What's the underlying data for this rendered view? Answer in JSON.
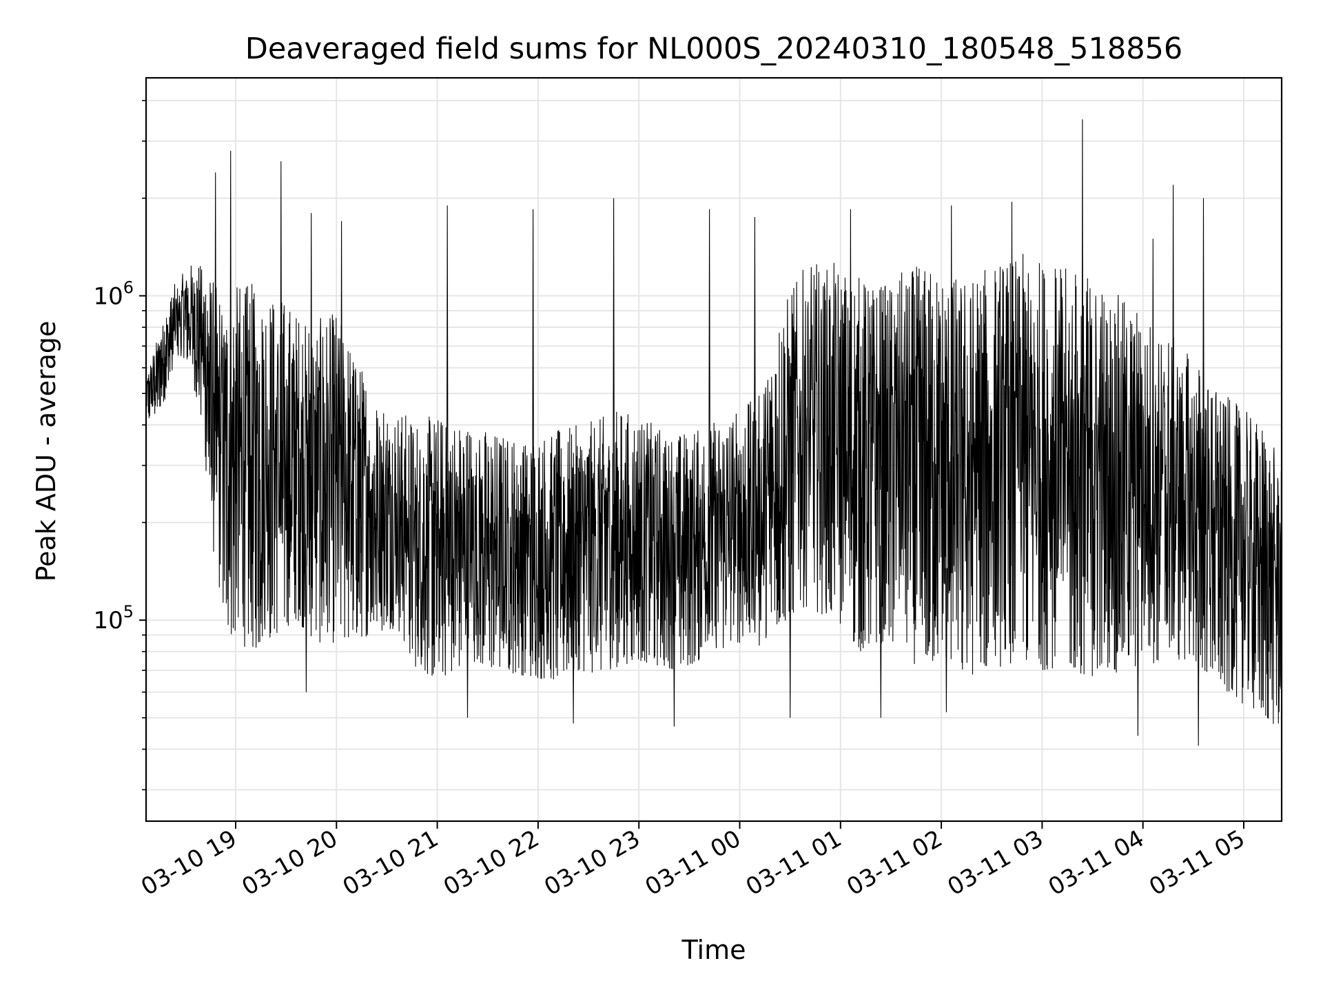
{
  "chart_data": {
    "type": "line",
    "title": "Deaveraged field sums for NL000S_20240310_180548_518856",
    "xlabel": "Time",
    "ylabel": "Peak ADU - average",
    "y_scale": "log",
    "ylim": [
      24000,
      4700000
    ],
    "xlim": [
      "03-10 18:06",
      "03-11 05:25"
    ],
    "grid": true,
    "line_color": "#000000",
    "grid_color": "#e6e6e6",
    "x_tick_labels": [
      "03-10 19",
      "03-10 20",
      "03-10 21",
      "03-10 22",
      "03-10 23",
      "03-11 00",
      "03-11 01",
      "03-11 02",
      "03-11 03",
      "03-11 04",
      "03-11 05"
    ],
    "y_tick_labels": [
      {
        "base": "10",
        "exp": "5",
        "value": 100000
      },
      {
        "base": "10",
        "exp": "6",
        "value": 1000000
      }
    ],
    "series": [
      {
        "x_hours_since_1800": [
          0.1,
          0.2,
          0.3,
          0.4,
          0.5,
          0.6,
          0.7,
          0.8,
          0.9,
          1.0,
          1.2,
          1.4,
          1.6,
          1.8,
          2.0,
          2.2,
          2.4,
          2.6,
          2.8,
          3.0,
          3.2,
          3.4,
          3.6,
          3.8,
          4.0,
          4.2,
          4.4,
          4.6,
          4.8,
          5.0,
          5.2,
          5.4,
          5.6,
          5.8,
          6.0,
          6.2,
          6.4,
          6.6,
          6.8,
          7.0,
          7.2,
          7.4,
          7.6,
          7.8,
          8.0,
          8.2,
          8.4,
          8.6,
          8.8,
          9.0,
          9.2,
          9.4,
          9.6,
          9.8,
          10.0,
          10.2,
          10.4,
          10.6,
          10.8,
          11.0,
          11.2,
          11.4
        ],
        "lower": [
          400000,
          420000,
          480000,
          600000,
          650000,
          500000,
          300000,
          140000,
          95000,
          85000,
          80000,
          90000,
          100000,
          85000,
          85000,
          88000,
          90000,
          95000,
          70000,
          65000,
          70000,
          72000,
          70000,
          68000,
          66000,
          65000,
          70000,
          68000,
          72000,
          75000,
          72000,
          70000,
          75000,
          80000,
          85000,
          80000,
          95000,
          110000,
          105000,
          95000,
          80000,
          85000,
          80000,
          70000,
          75000,
          65000,
          70000,
          72000,
          75000,
          70000,
          72000,
          68000,
          66000,
          70000,
          72000,
          75000,
          75000,
          70000,
          60000,
          55000,
          50000,
          45000
        ],
        "upper": [
          550000,
          700000,
          900000,
          1100000,
          1200000,
          1300000,
          1250000,
          1100000,
          1000000,
          1100000,
          1100000,
          1050000,
          900000,
          850000,
          900000,
          650000,
          500000,
          450000,
          420000,
          430000,
          420000,
          400000,
          380000,
          370000,
          380000,
          390000,
          400000,
          420000,
          450000,
          430000,
          400000,
          380000,
          400000,
          420000,
          450000,
          500000,
          900000,
          1200000,
          1300000,
          1250000,
          1150000,
          1100000,
          1200000,
          1250000,
          1200000,
          1150000,
          1200000,
          1300000,
          1350000,
          1300000,
          1250000,
          1200000,
          1100000,
          1000000,
          900000,
          800000,
          700000,
          600000,
          500000,
          450000,
          400000,
          300000
        ],
        "spikes": [
          {
            "x": 0.8,
            "y": 2400000
          },
          {
            "x": 0.95,
            "y": 2800000
          },
          {
            "x": 1.45,
            "y": 2600000
          },
          {
            "x": 1.75,
            "y": 1800000
          },
          {
            "x": 2.05,
            "y": 1700000
          },
          {
            "x": 3.1,
            "y": 1900000
          },
          {
            "x": 3.95,
            "y": 1850000
          },
          {
            "x": 4.75,
            "y": 2000000
          },
          {
            "x": 5.7,
            "y": 1850000
          },
          {
            "x": 6.15,
            "y": 1750000
          },
          {
            "x": 7.1,
            "y": 1850000
          },
          {
            "x": 8.1,
            "y": 1900000
          },
          {
            "x": 8.7,
            "y": 1950000
          },
          {
            "x": 9.4,
            "y": 3500000
          },
          {
            "x": 10.1,
            "y": 1500000
          },
          {
            "x": 10.3,
            "y": 2200000
          },
          {
            "x": 10.6,
            "y": 2000000
          }
        ],
        "dips": [
          {
            "x": 1.7,
            "y": 60000
          },
          {
            "x": 3.3,
            "y": 50000
          },
          {
            "x": 4.35,
            "y": 48000
          },
          {
            "x": 5.35,
            "y": 47000
          },
          {
            "x": 6.5,
            "y": 50000
          },
          {
            "x": 7.4,
            "y": 50000
          },
          {
            "x": 8.05,
            "y": 52000
          },
          {
            "x": 9.95,
            "y": 44000
          },
          {
            "x": 10.55,
            "y": 41000
          },
          {
            "x": 11.4,
            "y": 37000
          }
        ]
      }
    ]
  }
}
